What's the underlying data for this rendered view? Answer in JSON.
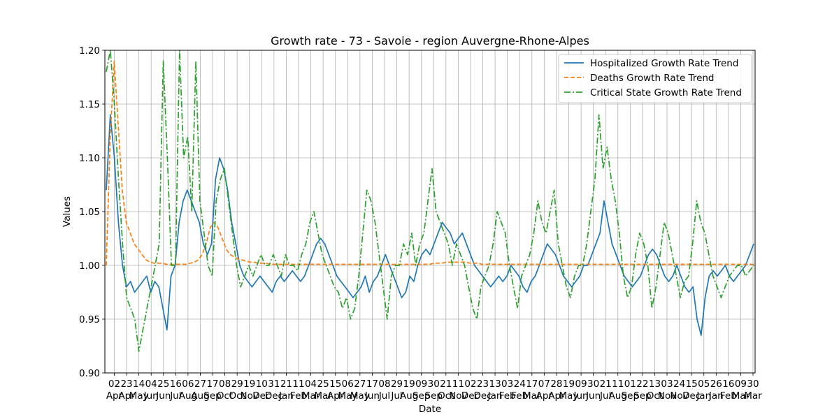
{
  "chart_data": {
    "type": "line",
    "title": "Growth rate - 73 - Savoie - region Auvergne-Rhone-Alpes",
    "xlabel": "Date",
    "ylabel": "Values",
    "ylim": [
      0.9,
      1.2
    ],
    "grid": true,
    "legend_position": "top-right",
    "y_ticks": [
      "0.90",
      "0.95",
      "1.00",
      "1.05",
      "1.10",
      "1.15",
      "1.20"
    ],
    "x_ticks": [
      {
        "day": "02",
        "month": "Apr"
      },
      {
        "day": "23",
        "month": "Apr"
      },
      {
        "day": "14",
        "month": "May"
      },
      {
        "day": "04",
        "month": "Jun"
      },
      {
        "day": "25",
        "month": "Jun"
      },
      {
        "day": "16",
        "month": "Jul"
      },
      {
        "day": "06",
        "month": "Aug"
      },
      {
        "day": "27",
        "month": "Aug"
      },
      {
        "day": "17",
        "month": "Sep"
      },
      {
        "day": "08",
        "month": "Oct"
      },
      {
        "day": "29",
        "month": "Oct"
      },
      {
        "day": "19",
        "month": "Nov"
      },
      {
        "day": "10",
        "month": "Dec"
      },
      {
        "day": "31",
        "month": "Dec"
      },
      {
        "day": "21",
        "month": "Jan"
      },
      {
        "day": "11",
        "month": "Feb"
      },
      {
        "day": "04",
        "month": "Mar"
      },
      {
        "day": "25",
        "month": "Mar"
      },
      {
        "day": "15",
        "month": "Apr"
      },
      {
        "day": "06",
        "month": "May"
      },
      {
        "day": "27",
        "month": "May"
      },
      {
        "day": "17",
        "month": "Jun"
      },
      {
        "day": "08",
        "month": "Jul"
      },
      {
        "day": "29",
        "month": "Jul"
      },
      {
        "day": "19",
        "month": "Aug"
      },
      {
        "day": "09",
        "month": "Sep"
      },
      {
        "day": "30",
        "month": "Sep"
      },
      {
        "day": "21",
        "month": "Oct"
      },
      {
        "day": "11",
        "month": "Nov"
      },
      {
        "day": "02",
        "month": "Dec"
      },
      {
        "day": "23",
        "month": "Dec"
      },
      {
        "day": "13",
        "month": "Jan"
      },
      {
        "day": "03",
        "month": "Feb"
      },
      {
        "day": "24",
        "month": "Feb"
      },
      {
        "day": "17",
        "month": "Mar"
      },
      {
        "day": "07",
        "month": "Apr"
      },
      {
        "day": "28",
        "month": "Apr"
      },
      {
        "day": "19",
        "month": "May"
      },
      {
        "day": "09",
        "month": "Jun"
      },
      {
        "day": "30",
        "month": "Jun"
      },
      {
        "day": "21",
        "month": "Jul"
      },
      {
        "day": "11",
        "month": "Aug"
      },
      {
        "day": "01",
        "month": "Sep"
      },
      {
        "day": "22",
        "month": "Sep"
      },
      {
        "day": "13",
        "month": "Oct"
      },
      {
        "day": "03",
        "month": "Nov"
      },
      {
        "day": "24",
        "month": "Nov"
      },
      {
        "day": "15",
        "month": "Dec"
      },
      {
        "day": "05",
        "month": "Jan"
      },
      {
        "day": "26",
        "month": "Jan"
      },
      {
        "day": "16",
        "month": "Feb"
      },
      {
        "day": "09",
        "month": "Mar"
      },
      {
        "day": "30",
        "month": "Mar"
      }
    ],
    "series": [
      {
        "name": "Hospitalized Growth Rate Trend",
        "color": "#1f77b4",
        "style": "solid",
        "values": [
          1.07,
          1.14,
          1.1,
          1.04,
          1.0,
          0.98,
          0.985,
          0.975,
          0.98,
          0.985,
          0.99,
          0.975,
          0.985,
          0.98,
          0.96,
          0.94,
          0.99,
          1.0,
          1.04,
          1.06,
          1.07,
          1.06,
          1.05,
          1.04,
          1.02,
          1.01,
          1.02,
          1.08,
          1.1,
          1.09,
          1.07,
          1.04,
          1.02,
          1.0,
          0.99,
          0.985,
          0.98,
          0.985,
          0.99,
          0.985,
          0.98,
          0.975,
          0.985,
          0.99,
          0.985,
          0.99,
          0.995,
          0.99,
          0.985,
          0.99,
          1.0,
          1.01,
          1.02,
          1.025,
          1.02,
          1.01,
          1.0,
          0.99,
          0.985,
          0.98,
          0.975,
          0.97,
          0.975,
          0.98,
          0.99,
          0.975,
          0.985,
          0.99,
          1.0,
          1.01,
          1.0,
          0.99,
          0.98,
          0.97,
          0.975,
          0.99,
          0.985,
          1.0,
          1.01,
          1.015,
          1.01,
          1.02,
          1.03,
          1.04,
          1.035,
          1.03,
          1.02,
          1.025,
          1.03,
          1.02,
          1.01,
          1.0,
          0.995,
          0.99,
          0.985,
          0.98,
          0.985,
          0.99,
          0.985,
          0.99,
          1.0,
          0.995,
          0.99,
          0.98,
          0.975,
          0.985,
          0.99,
          1.0,
          1.01,
          1.02,
          1.015,
          1.01,
          1.0,
          0.99,
          0.985,
          0.98,
          0.985,
          0.99,
          1.0,
          1.0,
          1.01,
          1.02,
          1.03,
          1.06,
          1.04,
          1.02,
          1.01,
          1.0,
          0.99,
          0.985,
          0.98,
          0.985,
          0.99,
          1.0,
          1.01,
          1.015,
          1.01,
          1.0,
          0.99,
          0.985,
          0.99,
          1.0,
          0.99,
          0.98,
          0.975,
          0.98,
          0.95,
          0.935,
          0.97,
          0.99,
          0.995,
          0.99,
          0.995,
          1.0,
          0.99,
          0.985,
          0.99,
          0.995,
          1.0,
          1.01,
          1.02
        ]
      },
      {
        "name": "Deaths Growth Rate Trend",
        "color": "#ff7f0e",
        "style": "dashed",
        "values": [
          1.0,
          1.12,
          1.19,
          1.13,
          1.07,
          1.04,
          1.03,
          1.02,
          1.015,
          1.01,
          1.005,
          1.003,
          1.002,
          1.002,
          1.002,
          1.001,
          1.001,
          1.001,
          1.001,
          1.001,
          1.001,
          1.002,
          1.003,
          1.005,
          1.01,
          1.02,
          1.035,
          1.04,
          1.035,
          1.025,
          1.015,
          1.01,
          1.008,
          1.006,
          1.005,
          1.004,
          1.003,
          1.003,
          1.002,
          1.002,
          1.002,
          1.001,
          1.001,
          1.001,
          1.001,
          1.001,
          1.001,
          1.001,
          1.001,
          1.001,
          1.001,
          1.001,
          1.001,
          1.001,
          1.001,
          1.001,
          1.001,
          1.001,
          1.001,
          1.001,
          1.001,
          1.001,
          1.001,
          1.001,
          1.001,
          1.001,
          1.001,
          1.001,
          1.001,
          1.001,
          1.001,
          1.001,
          1.001,
          1.001,
          1.001,
          1.001,
          1.001,
          1.001,
          1.001,
          1.001,
          1.001,
          1.001,
          1.002,
          1.002,
          1.002,
          1.003,
          1.003,
          1.003,
          1.003,
          1.003,
          1.003,
          1.002,
          1.002,
          1.002,
          1.001,
          1.001,
          1.001,
          1.001,
          1.001,
          1.001,
          1.001,
          1.001,
          1.001,
          1.001,
          1.001,
          1.001,
          1.001,
          1.001,
          1.001,
          1.001,
          1.001,
          1.001,
          1.001,
          1.001,
          1.001,
          1.001,
          1.001,
          1.001,
          1.001,
          1.001,
          1.001,
          1.001,
          1.001,
          1.001,
          1.001,
          1.001,
          1.001,
          1.001,
          1.001,
          1.001,
          1.001,
          1.001,
          1.001,
          1.001,
          1.001,
          1.001,
          1.001,
          1.001,
          1.001,
          1.001,
          1.001,
          1.001,
          1.001,
          1.001,
          1.001,
          1.001,
          1.001,
          1.001,
          1.001,
          1.001,
          1.001,
          1.001,
          1.001,
          1.001,
          1.001,
          1.001,
          1.001,
          1.001,
          1.001,
          1.001,
          1.001,
          1.001,
          1.001
        ]
      },
      {
        "name": "Critical State Growth Rate Trend",
        "color": "#2ca02c",
        "style": "dashdot",
        "values": [
          1.18,
          1.2,
          1.15,
          1.08,
          1.02,
          0.97,
          0.96,
          0.95,
          0.92,
          0.94,
          0.96,
          0.98,
          1.0,
          1.02,
          1.19,
          1.1,
          1.0,
          1.0,
          1.2,
          1.1,
          1.12,
          1.05,
          1.19,
          1.06,
          1.03,
          1.0,
          0.99,
          1.06,
          1.08,
          1.09,
          1.06,
          1.03,
          1.0,
          0.98,
          0.99,
          1.0,
          0.99,
          1.0,
          1.01,
          1.0,
          1.0,
          1.01,
          1.0,
          0.99,
          1.01,
          1.0,
          1.0,
          0.995,
          1.01,
          1.02,
          1.04,
          1.05,
          1.03,
          1.01,
          1.0,
          0.99,
          0.98,
          0.975,
          0.96,
          0.97,
          0.95,
          0.96,
          0.99,
          1.03,
          1.07,
          1.06,
          1.04,
          1.01,
          0.98,
          0.95,
          0.99,
          1.0,
          1.0,
          1.02,
          1.01,
          1.03,
          1.0,
          1.02,
          1.03,
          1.06,
          1.09,
          1.05,
          1.04,
          1.03,
          1.02,
          1.0,
          1.02,
          1.01,
          1.0,
          0.98,
          0.96,
          0.95,
          0.98,
          0.99,
          1.0,
          1.02,
          1.05,
          1.04,
          1.03,
          1.0,
          0.98,
          0.96,
          0.99,
          1.0,
          1.01,
          1.03,
          1.06,
          1.04,
          1.03,
          1.05,
          1.07,
          1.02,
          1.0,
          0.98,
          0.97,
          0.99,
          1.0,
          1.0,
          1.02,
          1.05,
          1.08,
          1.14,
          1.09,
          1.11,
          1.08,
          1.06,
          1.03,
          0.99,
          0.97,
          0.98,
          1.01,
          1.03,
          1.02,
          1.0,
          0.96,
          0.98,
          1.01,
          1.04,
          1.03,
          1.01,
          0.99,
          0.97,
          0.985,
          0.99,
          1.02,
          1.06,
          1.04,
          1.03,
          1.01,
          0.99,
          0.98,
          0.97,
          0.98,
          0.99,
          0.995,
          1.0,
          1.0,
          0.99,
          0.995,
          1.0
        ]
      }
    ]
  }
}
